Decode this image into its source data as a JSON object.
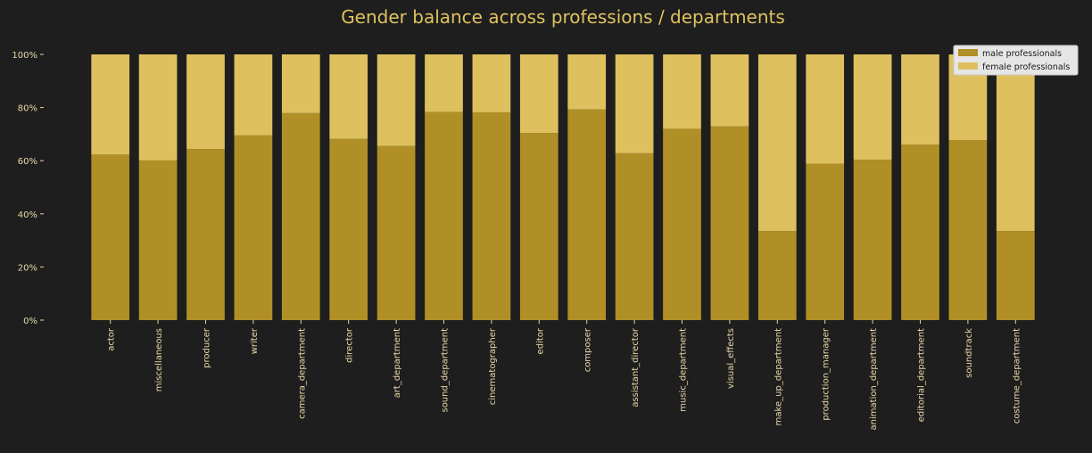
{
  "chart_data": {
    "type": "bar",
    "stacked": true,
    "title": "Gender balance across professions / departments",
    "xlabel": "",
    "ylabel": "",
    "ylim": [
      0,
      100
    ],
    "y_ticks": [
      "0%",
      "20%",
      "40%",
      "60%",
      "80%",
      "100%"
    ],
    "y_tick_values": [
      0,
      20,
      40,
      60,
      80,
      100
    ],
    "categories": [
      "actor",
      "miscellaneous",
      "producer",
      "writer",
      "camera_department",
      "director",
      "art_department",
      "sound_department",
      "cinematographer",
      "editor",
      "composer",
      "assistant_director",
      "music_department",
      "visual_effects",
      "make_up_department",
      "production_manager",
      "animation_department",
      "editorial_department",
      "soundtrack",
      "costume_department"
    ],
    "series": [
      {
        "name": "male professionals",
        "color": "#b08f26",
        "values": [
          62.3,
          60.1,
          64.4,
          69.5,
          77.9,
          68.2,
          65.5,
          78.3,
          78.2,
          70.4,
          79.3,
          62.8,
          72.0,
          72.9,
          33.5,
          58.8,
          60.4,
          66.0,
          67.7,
          33.5
        ]
      },
      {
        "name": "female professionals",
        "color": "#dec05e",
        "values": [
          37.7,
          39.9,
          35.6,
          30.5,
          22.1,
          31.8,
          34.5,
          21.7,
          21.8,
          29.6,
          20.7,
          37.2,
          28.0,
          27.1,
          66.5,
          41.2,
          39.6,
          34.0,
          32.3,
          66.5
        ]
      }
    ],
    "legend": {
      "position": "top-right",
      "entries": [
        "male professionals",
        "female professionals"
      ]
    },
    "grid": false,
    "colors": {
      "background": "#1e1e1e",
      "text": "#e0c25f",
      "axis_text": "#e8d8a8",
      "legend_bg": "#e6e6e6",
      "legend_text": "#1a1a1a"
    }
  }
}
